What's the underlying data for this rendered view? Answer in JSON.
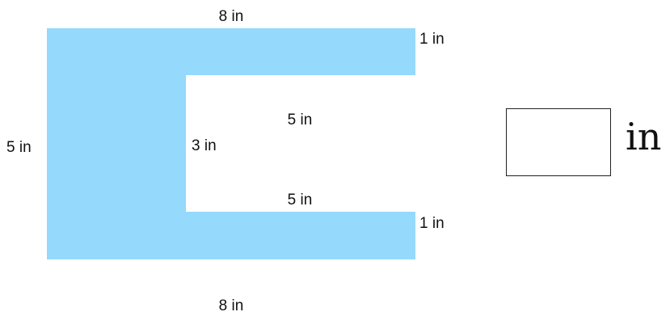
{
  "shape": {
    "fill_color": "#95d9fc"
  },
  "labels": {
    "top": "8 in",
    "top_right": "1 in",
    "left": "5 in",
    "inner_vertical": "3 in",
    "inner_middle": "5 in",
    "inner_bottom": "5 in",
    "bottom_right": "1 in",
    "bottom": "8 in"
  },
  "answer": {
    "value": "",
    "unit": "in"
  }
}
